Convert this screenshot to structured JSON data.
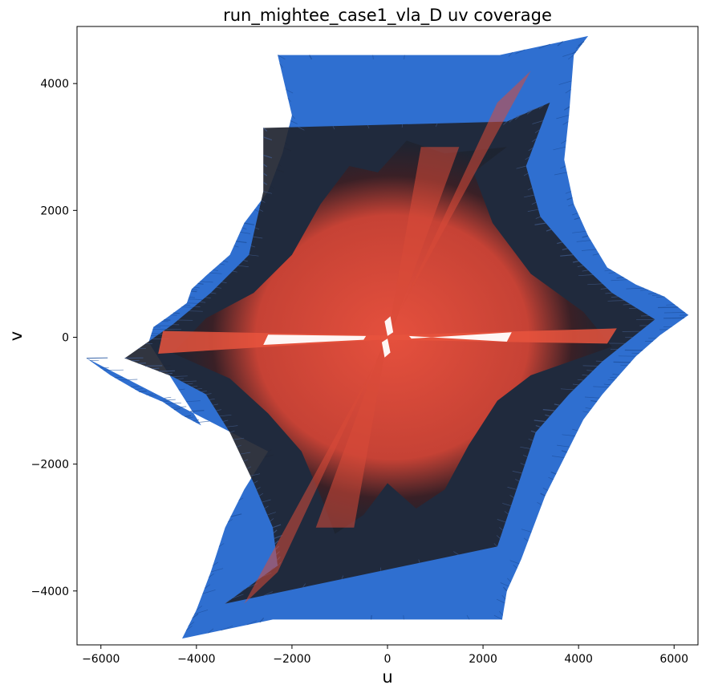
{
  "chart_data": {
    "type": "scatter",
    "title": "run_mightee_case1_vla_D uv coverage",
    "xlabel": "u",
    "ylabel": "v",
    "xlim": [
      -6500,
      6500
    ],
    "ylim": [
      -4850,
      4900
    ],
    "xticks": [
      -6000,
      -4000,
      -2000,
      0,
      2000,
      4000,
      6000
    ],
    "yticks": [
      -4000,
      -2000,
      0,
      2000,
      4000
    ],
    "xtick_labels": [
      "−6000",
      "−4000",
      "−2000",
      "0",
      "2000",
      "4000",
      "6000"
    ],
    "ytick_labels": [
      "−4000",
      "−2000",
      "0",
      "2000",
      "4000"
    ],
    "grid": false,
    "legend": false,
    "colors": {
      "outer": "#2f6fd0",
      "middle": "#1f2430",
      "inner": "#e04a3a"
    },
    "series": [
      {
        "values": [
          [
            -6300,
            -330
          ],
          [
            -5800,
            -600
          ],
          [
            -5200,
            -860
          ],
          [
            -4700,
            -1020
          ],
          [
            -4300,
            -1230
          ],
          [
            -3900,
            -1390
          ],
          [
            -5000,
            -80
          ],
          [
            -4900,
            160
          ],
          [
            -4600,
            320
          ],
          [
            -4200,
            540
          ],
          [
            -4100,
            760
          ],
          [
            -3800,
            970
          ],
          [
            -3300,
            1300
          ],
          [
            -3000,
            1800
          ],
          [
            -2500,
            2300
          ],
          [
            -2200,
            2900
          ],
          [
            -2000,
            3500
          ],
          [
            -2300,
            4450
          ],
          [
            2350,
            4450
          ],
          [
            4200,
            4750
          ],
          [
            3900,
            4450
          ],
          [
            3800,
            3500
          ],
          [
            3700,
            2800
          ],
          [
            3900,
            2100
          ],
          [
            4200,
            1600
          ],
          [
            4600,
            1100
          ],
          [
            5200,
            830
          ],
          [
            5800,
            640
          ],
          [
            6300,
            350
          ],
          [
            5700,
            30
          ],
          [
            5200,
            -300
          ],
          [
            4800,
            -640
          ],
          [
            4500,
            -900
          ],
          [
            4100,
            -1300
          ],
          [
            3700,
            -1900
          ],
          [
            3300,
            -2500
          ],
          [
            2800,
            -3500
          ],
          [
            2500,
            -4000
          ],
          [
            2400,
            -4450
          ],
          [
            -2400,
            -4450
          ],
          [
            -4300,
            -4750
          ],
          [
            -4000,
            -4300
          ],
          [
            -3700,
            -3700
          ],
          [
            -3400,
            -3000
          ],
          [
            -3000,
            -2400
          ],
          [
            -2500,
            -1800
          ]
        ]
      },
      {
        "values": [
          [
            -5500,
            -330
          ],
          [
            -4500,
            -620
          ],
          [
            -3800,
            -900
          ],
          [
            -3300,
            -1500
          ],
          [
            -2800,
            -2300
          ],
          [
            -2400,
            -3000
          ],
          [
            -2300,
            -3600
          ],
          [
            -3400,
            -4200
          ],
          [
            2300,
            -3300
          ],
          [
            2700,
            -2400
          ],
          [
            3100,
            -1500
          ],
          [
            3800,
            -900
          ],
          [
            4500,
            -380
          ],
          [
            5600,
            280
          ],
          [
            4700,
            700
          ],
          [
            4000,
            1200
          ],
          [
            3200,
            1900
          ],
          [
            2900,
            2700
          ],
          [
            3400,
            3700
          ],
          [
            2500,
            3400
          ],
          [
            -2600,
            3300
          ],
          [
            -2600,
            2300
          ],
          [
            -2900,
            1300
          ],
          [
            -3700,
            700
          ],
          [
            -4500,
            200
          ]
        ]
      },
      {
        "values": [
          [
            -4500,
            -250
          ],
          [
            -3300,
            -650
          ],
          [
            -2500,
            -1200
          ],
          [
            -1800,
            -1800
          ],
          [
            -1400,
            -2500
          ],
          [
            -1100,
            -3100
          ],
          [
            -500,
            -2800
          ],
          [
            0,
            -2300
          ],
          [
            600,
            -2700
          ],
          [
            1200,
            -2400
          ],
          [
            1700,
            -1700
          ],
          [
            2300,
            -1000
          ],
          [
            3000,
            -600
          ],
          [
            4700,
            -150
          ],
          [
            4100,
            400
          ],
          [
            3000,
            1000
          ],
          [
            2200,
            1800
          ],
          [
            1800,
            2600
          ],
          [
            2500,
            3000
          ],
          [
            1200,
            2900
          ],
          [
            400,
            3100
          ],
          [
            -200,
            2600
          ],
          [
            -800,
            2700
          ],
          [
            -1400,
            2100
          ],
          [
            -2000,
            1300
          ],
          [
            -2800,
            700
          ],
          [
            -3800,
            300
          ]
        ]
      }
    ]
  }
}
